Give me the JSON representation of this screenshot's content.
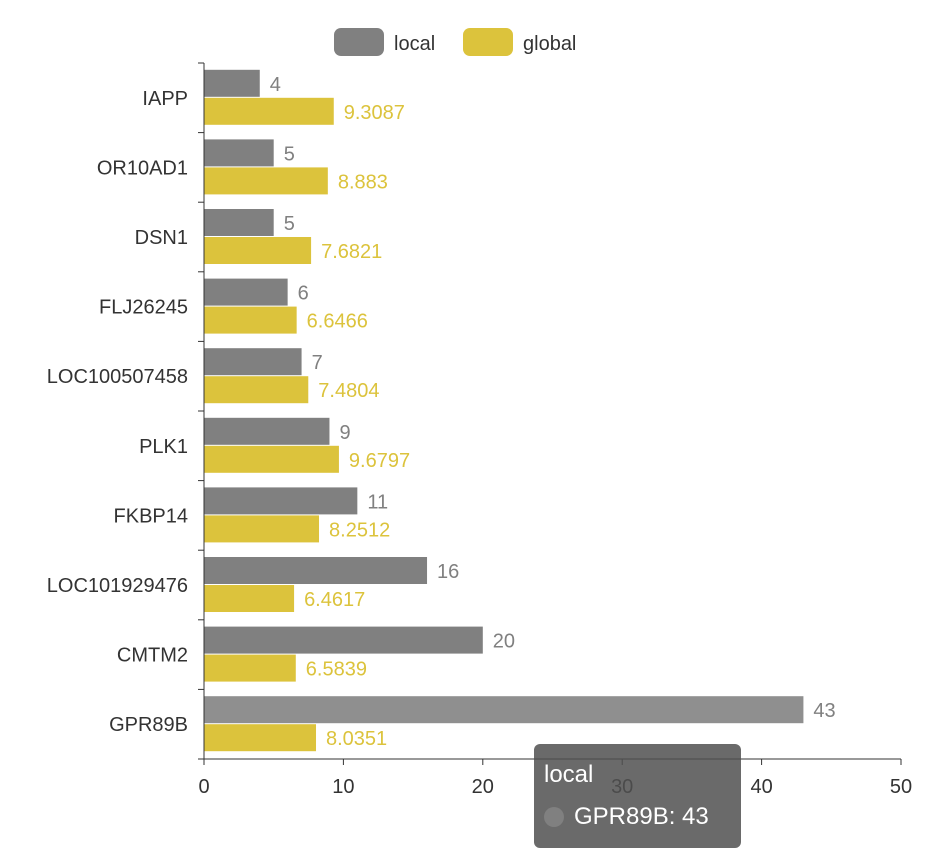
{
  "chart_data": {
    "type": "bar",
    "orientation": "horizontal",
    "categories": [
      "IAPP",
      "OR10AD1",
      "DSN1",
      "FLJ26245",
      "LOC100507458",
      "PLK1",
      "FKBP14",
      "LOC101929476",
      "CMTM2",
      "GPR89B"
    ],
    "series": [
      {
        "name": "local",
        "color": "#808080",
        "values": [
          4,
          5,
          5,
          6,
          7,
          9,
          11,
          16,
          20,
          43
        ]
      },
      {
        "name": "global",
        "color": "#dcc33c",
        "values": [
          9.3087,
          8.883,
          7.6821,
          6.6466,
          7.4804,
          9.6797,
          8.2512,
          6.4617,
          6.5839,
          8.0351
        ]
      }
    ],
    "value_labels": {
      "local": [
        "4",
        "5",
        "5",
        "6",
        "7",
        "9",
        "11",
        "16",
        "20",
        "43"
      ],
      "global": [
        "9.3087",
        "8.883",
        "7.6821",
        "6.6466",
        "7.4804",
        "9.6797",
        "8.2512",
        "6.4617",
        "6.5839",
        "8.0351"
      ]
    },
    "xlim": [
      0,
      50
    ],
    "xticks": [
      0,
      10,
      20,
      30,
      40,
      50
    ],
    "xtick_labels": [
      "0",
      "10",
      "20",
      "30",
      "40",
      "50"
    ],
    "legend": {
      "placement": "top-center"
    },
    "grid": false,
    "title": "",
    "xlabel": "",
    "ylabel": ""
  },
  "tooltip": {
    "series": "local",
    "category": "GPR89B",
    "value": "43",
    "text": "GPR89B: 43",
    "dot_color": "#808080"
  }
}
